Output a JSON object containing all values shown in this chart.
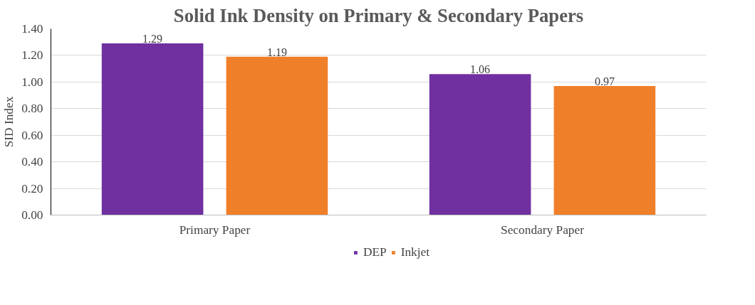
{
  "chart_data": {
    "type": "bar",
    "title": "Solid Ink Density on Primary & Secondary Papers",
    "ylabel": "SID Index",
    "categories": [
      "Primary Paper",
      "Secondary Paper"
    ],
    "series": [
      {
        "name": "DEP",
        "color": "#7030a0",
        "values": [
          1.29,
          1.06
        ]
      },
      {
        "name": "Inkjet",
        "color": "#f07f2a",
        "values": [
          1.19,
          0.97
        ]
      }
    ],
    "ylim": [
      0,
      1.4
    ],
    "yticks": [
      {
        "value": 0,
        "label": "0.00"
      },
      {
        "value": 0.2,
        "label": "0.20"
      },
      {
        "value": 0.4,
        "label": "0.40"
      },
      {
        "value": 0.6,
        "label": "0.60"
      },
      {
        "value": 0.8,
        "label": "0.80"
      },
      {
        "value": 1.0,
        "label": "1.00"
      },
      {
        "value": 1.2,
        "label": "1.20"
      },
      {
        "value": 1.4,
        "label": "1.40"
      }
    ],
    "grid": "y",
    "legend": "bottom",
    "data_labels": true
  }
}
